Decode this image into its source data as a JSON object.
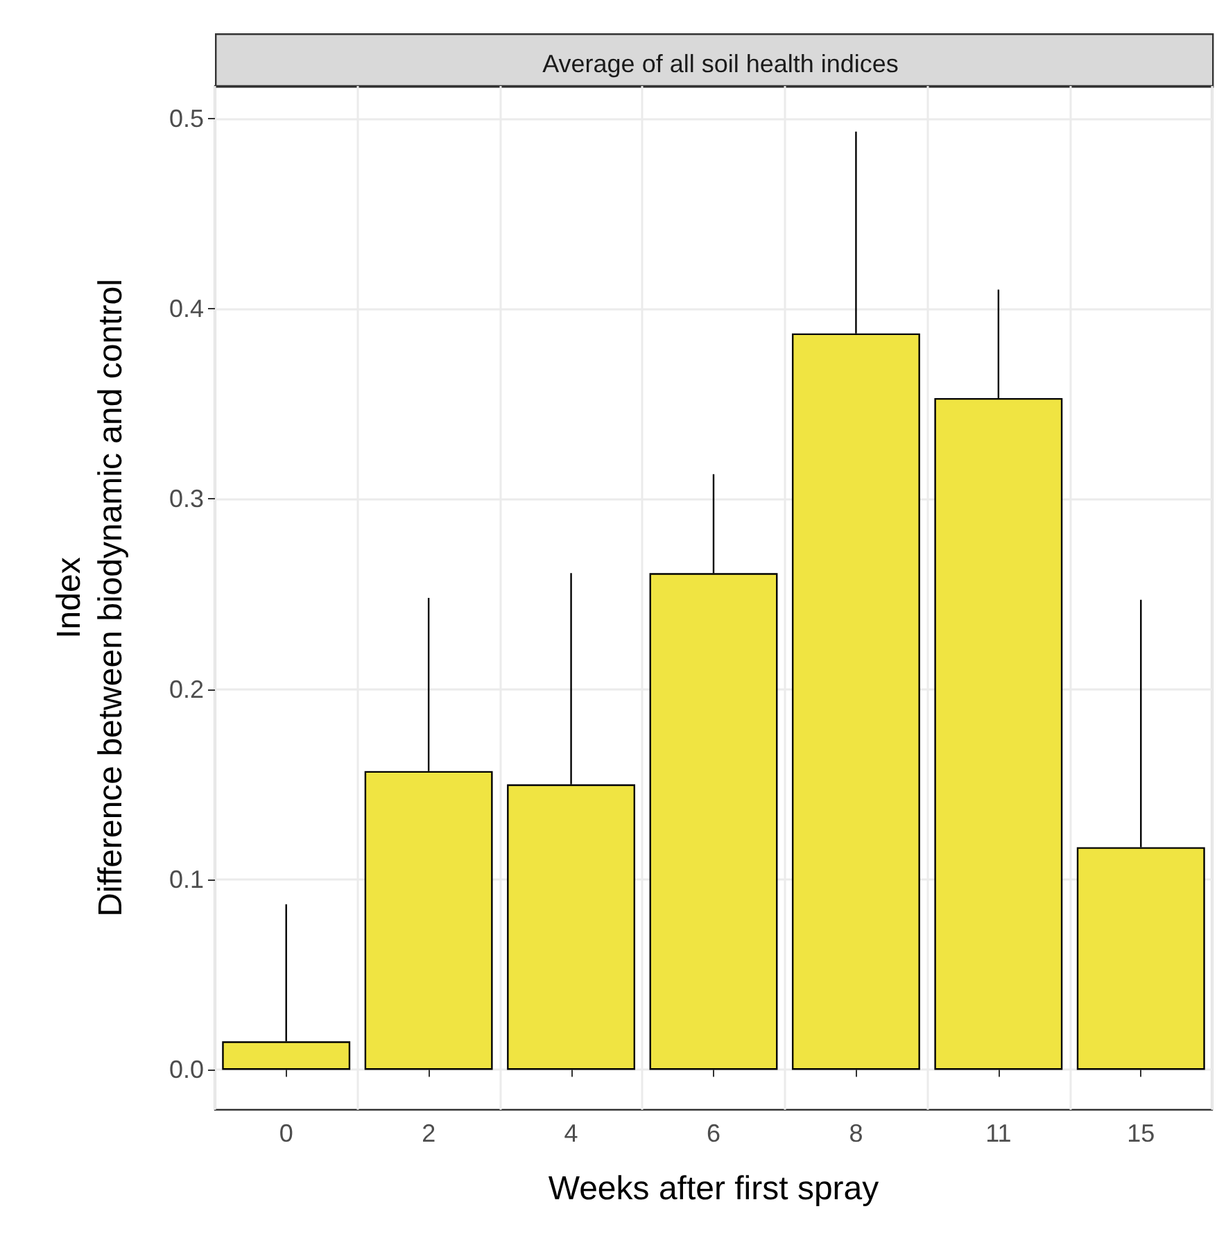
{
  "chart_data": {
    "type": "bar",
    "title": "Average of all soil health indices",
    "xlabel": "Weeks after first spray",
    "ylabel": "Index\nDifference between biodynamic and control",
    "categories": [
      "0",
      "2",
      "4",
      "6",
      "8",
      "11",
      "15"
    ],
    "values": [
      0.015,
      0.157,
      0.15,
      0.261,
      0.387,
      0.353,
      0.117
    ],
    "errors": [
      [
        0.015,
        0.087
      ],
      [
        0.157,
        0.248
      ],
      [
        0.15,
        0.261
      ],
      [
        0.261,
        0.313
      ],
      [
        0.387,
        0.493
      ],
      [
        0.353,
        0.41
      ],
      [
        0.117,
        0.247
      ]
    ],
    "color": "#f0e442",
    "ylim": [
      -0.021,
      0.517
    ],
    "yticks": [
      {
        "value": 0,
        "label": "0.0"
      },
      {
        "value": 0.1,
        "label": "0.1"
      },
      {
        "value": 0.2,
        "label": "0.2"
      },
      {
        "value": 0.3,
        "label": "0.3"
      },
      {
        "value": 0.4,
        "label": "0.4"
      },
      {
        "value": 0.5,
        "label": "0.5"
      }
    ],
    "grid": true
  }
}
